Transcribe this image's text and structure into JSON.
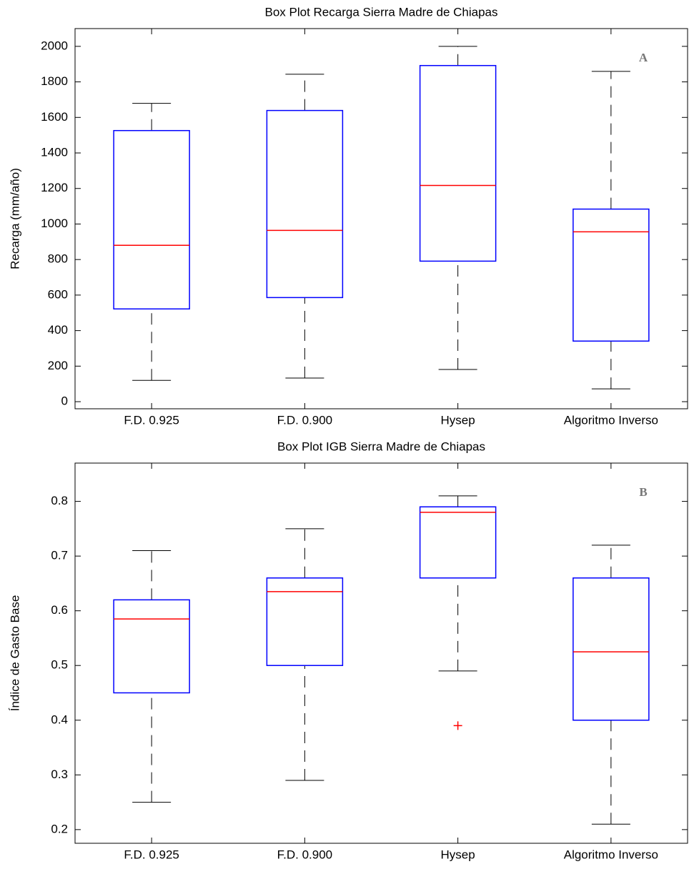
{
  "chart_data": [
    {
      "type": "box",
      "title": "Box Plot Recarga Sierra Madre de Chiapas",
      "ylabel": "Recarga (mm/año)",
      "annotation": "A",
      "categories": [
        "F.D. 0.925",
        "F.D. 0.900",
        "Hysep",
        "Algoritmo Inverso"
      ],
      "boxes": [
        {
          "low": 120,
          "q1": 522,
          "median": 880,
          "q3": 1526,
          "high": 1679
        },
        {
          "low": 133,
          "q1": 586,
          "median": 964,
          "q3": 1639,
          "high": 1843
        },
        {
          "low": 181,
          "q1": 791,
          "median": 1217,
          "q3": 1892,
          "high": 2000
        },
        {
          "low": 72,
          "q1": 341,
          "median": 956,
          "q3": 1084,
          "high": 1859
        }
      ],
      "box_color": "#0000ff",
      "median_color": "#ff0000",
      "whisker_color": "#000000",
      "ylim": [
        -40,
        2100
      ],
      "yticks": [
        0,
        200,
        400,
        600,
        800,
        1000,
        1200,
        1400,
        1600,
        1800,
        2000
      ]
    },
    {
      "type": "box",
      "title": "Box Plot IGB Sierra Madre de Chiapas",
      "ylabel": "Índice de Gasto Base",
      "annotation": "B",
      "categories": [
        "F.D. 0.925",
        "F.D. 0.900",
        "Hysep",
        "Algoritmo Inverso"
      ],
      "boxes": [
        {
          "low": 0.25,
          "q1": 0.45,
          "median": 0.585,
          "q3": 0.62,
          "high": 0.71
        },
        {
          "low": 0.29,
          "q1": 0.5,
          "median": 0.635,
          "q3": 0.66,
          "high": 0.75
        },
        {
          "low": 0.49,
          "q1": 0.66,
          "median": 0.78,
          "q3": 0.79,
          "high": 0.81,
          "outliers": [
            0.39
          ]
        },
        {
          "low": 0.21,
          "q1": 0.4,
          "median": 0.525,
          "q3": 0.66,
          "high": 0.72
        }
      ],
      "box_color": "#0000ff",
      "median_color": "#ff0000",
      "whisker_color": "#000000",
      "ylim": [
        0.175,
        0.87
      ],
      "yticks": [
        0.2,
        0.3,
        0.4,
        0.5,
        0.6,
        0.7,
        0.8
      ]
    }
  ]
}
